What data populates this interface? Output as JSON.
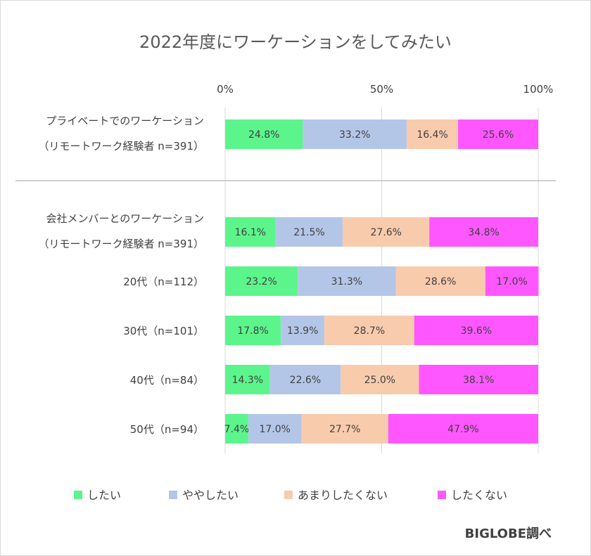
{
  "title": "2022年度にワーケーションをしてみたい",
  "credit": "BIGLOBE調べ",
  "colors": {
    "したい": "#5cf58c",
    "ややしたい": "#b4c6e7",
    "あまりしたくない": "#f8cbad",
    "したくない": "#ff57ff",
    "grid": "#d9d9d9",
    "separator": "#bfbfbf"
  },
  "chart_data": {
    "type": "bar",
    "orientation": "horizontal",
    "stacked": "percent",
    "xlim": [
      0,
      100
    ],
    "x_ticks": [
      "0%",
      "50%",
      "100%"
    ],
    "grid": true,
    "legend_position": "bottom",
    "categories": [
      [
        "プライベートでのワーケーション",
        "（リモートワーク経験者 n=391）"
      ],
      [
        "会社メンバーとのワーケーション",
        "（リモートワーク経験者 n=391）"
      ],
      [
        "20代（n=112）"
      ],
      [
        "30代（n=101）"
      ],
      [
        "40代（n=84）"
      ],
      [
        "50代（n=94）"
      ]
    ],
    "series": [
      {
        "name": "したい",
        "values": [
          24.8,
          16.1,
          23.2,
          17.8,
          14.3,
          7.4
        ],
        "labels": [
          "24.8%",
          "16.1%",
          "23.2%",
          "17.8%",
          "14.3%",
          "7.4%"
        ]
      },
      {
        "name": "ややしたい",
        "values": [
          33.2,
          21.5,
          31.3,
          13.9,
          22.6,
          17.0
        ],
        "labels": [
          "33.2%",
          "21.5%",
          "31.3%",
          "13.9%",
          "22.6%",
          "17.0%"
        ]
      },
      {
        "name": "あまりしたくない",
        "values": [
          16.4,
          27.6,
          28.6,
          28.7,
          25.0,
          27.7
        ],
        "labels": [
          "16.4%",
          "27.6%",
          "28.6%",
          "28.7%",
          "25.0%",
          "27.7%"
        ]
      },
      {
        "name": "したくない",
        "values": [
          25.6,
          34.8,
          17.0,
          39.6,
          38.1,
          47.9
        ],
        "labels": [
          "25.6%",
          "34.8%",
          "17.0%",
          "39.6%",
          "38.1%",
          "47.9%"
        ]
      }
    ]
  }
}
